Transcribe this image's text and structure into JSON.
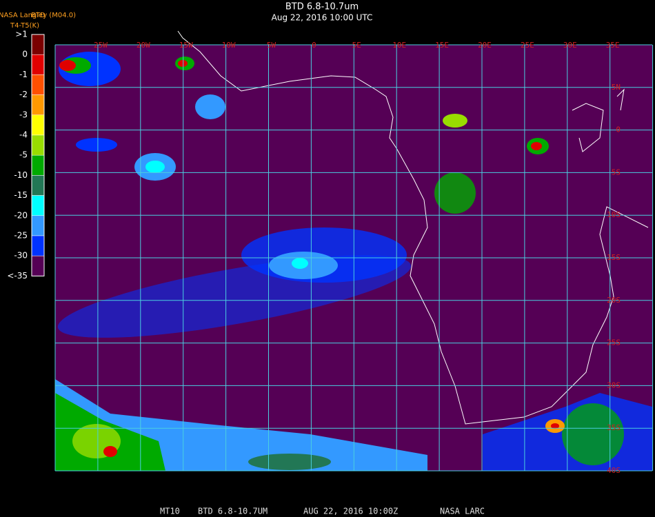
{
  "header": {
    "source": "NASA Langley (M04.0)",
    "product": "BTD",
    "units": "T4-T5(K)",
    "title": "BTD 6.8-10.7um",
    "time": "Aug 22, 2016 10:00 UTC"
  },
  "legend": {
    "labels": [
      ">1",
      "0",
      "-1",
      "-2",
      "-3",
      "-4",
      "-5",
      "-10",
      "-15",
      "-20",
      "-25",
      "-30",
      "<-35"
    ],
    "colors": [
      "#7a0000",
      "#e00000",
      "#ff5000",
      "#ff9900",
      "#ffff00",
      "#99dd00",
      "#00aa00",
      "#227755",
      "#00ffff",
      "#3399ff",
      "#0033ff",
      "#550055"
    ]
  },
  "map": {
    "lon_labels": [
      "25W",
      "20W",
      "15W",
      "10W",
      "5W",
      "0",
      "5E",
      "10E",
      "15E",
      "20E",
      "25E",
      "30E",
      "35E"
    ],
    "lat_labels": [
      "5N",
      "0",
      "5S",
      "10S",
      "15S",
      "20S",
      "25S",
      "30S",
      "35S",
      "40S"
    ]
  },
  "footer": {
    "id": "MT10",
    "product": "BTD 6.8-10.7UM",
    "time": "AUG 22, 2016 10:00Z",
    "org": "NASA LARC"
  }
}
